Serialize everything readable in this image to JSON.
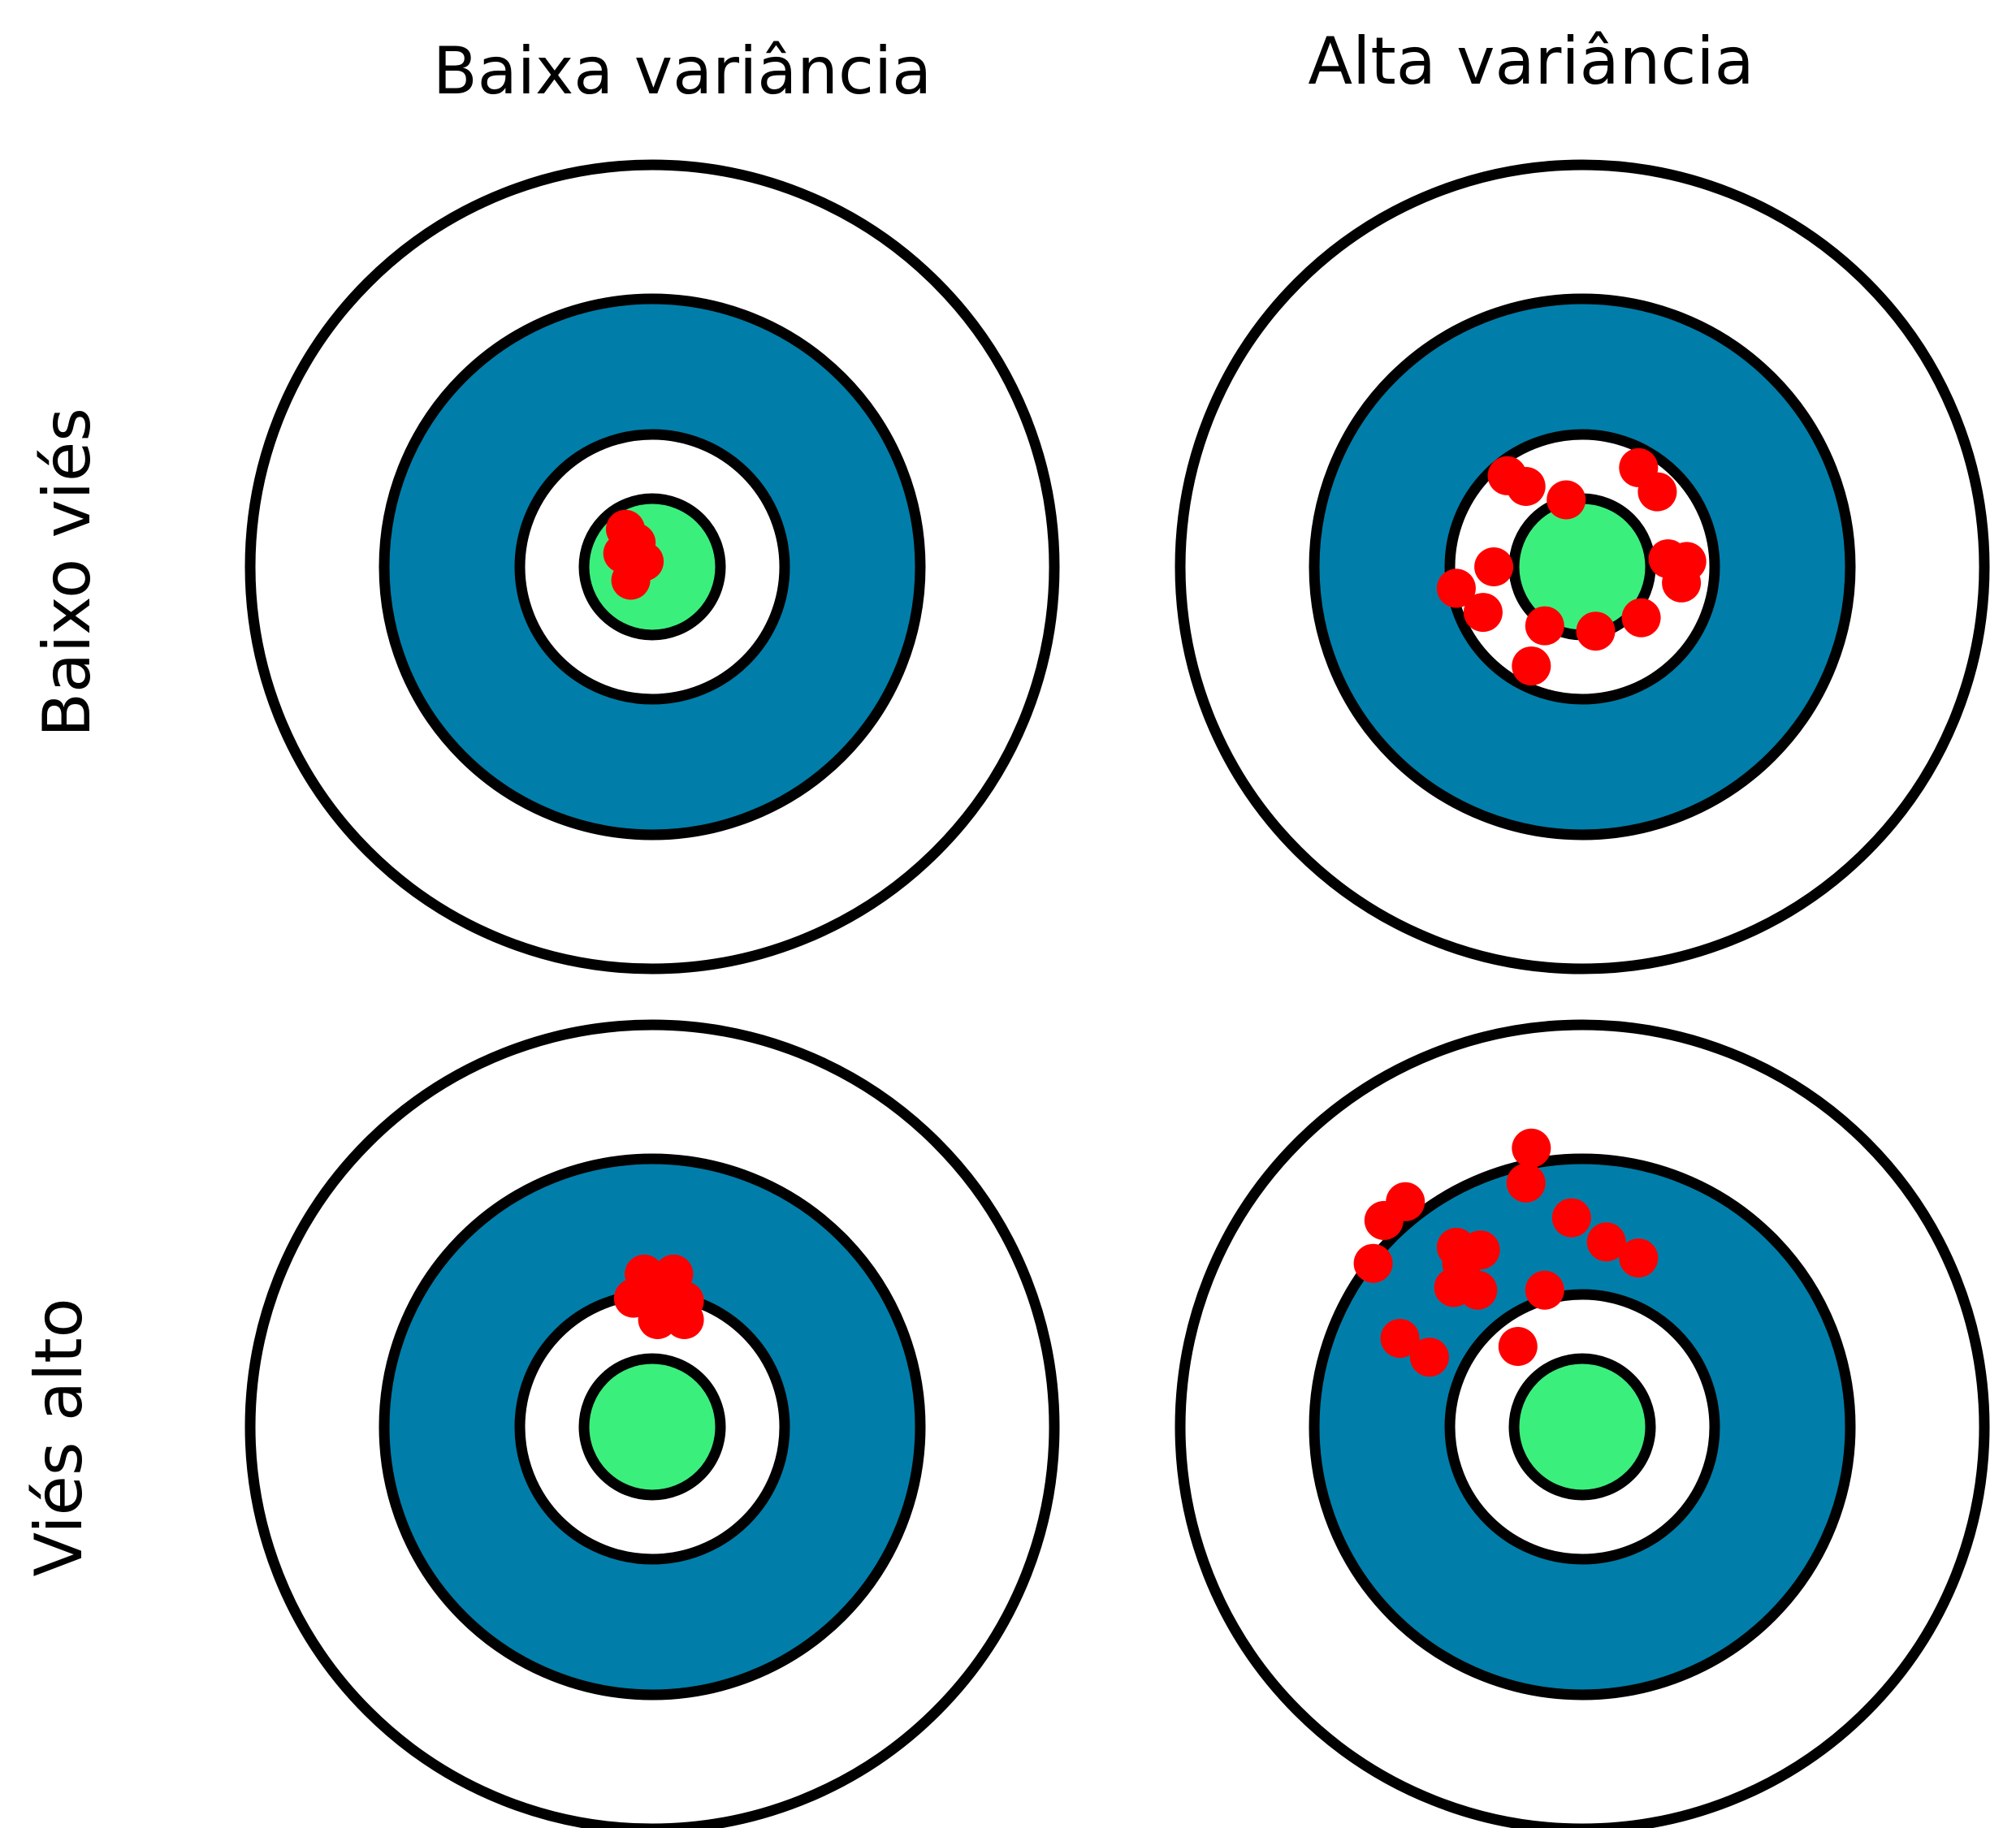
{
  "col_labels": [
    "Baixa variância",
    "Alta variância"
  ],
  "row_labels": [
    "Baixo viés",
    "Viés alto"
  ],
  "colors": {
    "outer_ring": "#ffffff",
    "blue_ring": "#007ea9",
    "inner_ring": "#ffffff",
    "bullseye": "#3bef7d",
    "outline": "#000000",
    "hit": "#ff0000"
  },
  "panels": [
    {
      "name": "baixo-vies-baixa-variancia",
      "hits": [
        [
          -0.1,
          -0.14
        ],
        [
          -0.06,
          -0.09
        ],
        [
          -0.11,
          -0.05
        ],
        [
          -0.03,
          -0.02
        ],
        [
          -0.08,
          0.05
        ]
      ]
    },
    {
      "name": "baixo-vies-alta-variancia",
      "hits": [
        [
          -0.28,
          -0.34
        ],
        [
          -0.21,
          -0.3
        ],
        [
          0.21,
          -0.37
        ],
        [
          0.28,
          -0.28
        ],
        [
          -0.06,
          -0.25
        ],
        [
          -0.33,
          0.0
        ],
        [
          0.32,
          -0.03
        ],
        [
          0.39,
          -0.02
        ],
        [
          -0.47,
          0.08
        ],
        [
          -0.37,
          0.17
        ],
        [
          0.37,
          0.06
        ],
        [
          -0.14,
          0.22
        ],
        [
          0.05,
          0.24
        ],
        [
          0.22,
          0.19
        ],
        [
          -0.19,
          0.37
        ]
      ]
    },
    {
      "name": "vies-alto-baixa-variancia",
      "hits": [
        [
          -0.03,
          -0.57
        ],
        [
          0.08,
          -0.57
        ],
        [
          -0.07,
          -0.48
        ],
        [
          0.04,
          -0.49
        ],
        [
          0.12,
          -0.47
        ],
        [
          0.02,
          -0.4
        ],
        [
          0.12,
          -0.4
        ]
      ]
    },
    {
      "name": "vies-alto-alta-variancia",
      "hits": [
        [
          -0.19,
          -1.04
        ],
        [
          -0.21,
          -0.91
        ],
        [
          -0.66,
          -0.84
        ],
        [
          -0.74,
          -0.77
        ],
        [
          -0.04,
          -0.78
        ],
        [
          0.09,
          -0.69
        ],
        [
          -0.47,
          -0.67
        ],
        [
          -0.38,
          -0.66
        ],
        [
          -0.45,
          -0.61
        ],
        [
          -0.78,
          -0.61
        ],
        [
          0.21,
          -0.63
        ],
        [
          -0.48,
          -0.52
        ],
        [
          -0.39,
          -0.51
        ],
        [
          -0.14,
          -0.51
        ],
        [
          -0.68,
          -0.33
        ],
        [
          -0.57,
          -0.26
        ],
        [
          -0.24,
          -0.3
        ]
      ]
    }
  ]
}
